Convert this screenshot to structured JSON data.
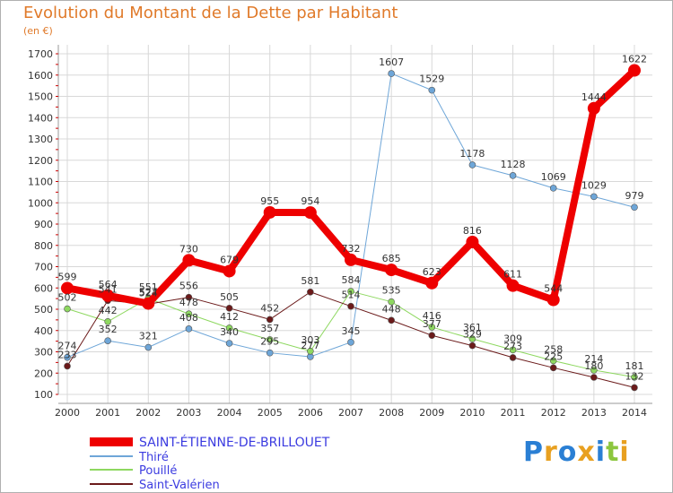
{
  "header": {
    "title": "Evolution du Montant de la Dette par Habitant",
    "subtitle": "(en €)"
  },
  "colors": {
    "text": "#e07a2a",
    "legend_text": "#3b3be0",
    "axis_text": "#333333",
    "grid": "#d8d8d8",
    "axis_ticks_red": "#cc0000"
  },
  "logo": {
    "text": "Proxiti"
  },
  "chart_data": {
    "type": "line",
    "title": "Evolution du Montant de la Dette par Habitant",
    "subtitle": "(en €)",
    "xlabel": "",
    "ylabel": "",
    "categories": [
      "2000",
      "2001",
      "2002",
      "2003",
      "2004",
      "2005",
      "2006",
      "2007",
      "2008",
      "2009",
      "2010",
      "2011",
      "2012",
      "2013",
      "2014"
    ],
    "ylim": [
      100,
      1700
    ],
    "yticks": [
      100,
      200,
      300,
      400,
      500,
      600,
      700,
      800,
      900,
      1000,
      1100,
      1200,
      1300,
      1400,
      1500,
      1600,
      1700
    ],
    "grid": true,
    "legend_position": "bottom-left",
    "series": [
      {
        "name": "SAINT-ÉTIENNE-DE-BRILLOUET",
        "color": "#ee0000",
        "width": 8,
        "values": [
          599,
          564,
          527,
          730,
          679,
          955,
          954,
          732,
          685,
          623,
          816,
          611,
          544,
          1444,
          1622
        ],
        "labels": [
          "599",
          "564",
          "527",
          "730",
          "679",
          "955",
          "954",
          "732",
          "685",
          "623",
          "816",
          "611",
          "544",
          "1444",
          "1622"
        ]
      },
      {
        "name": "Thiré",
        "color": "#6ea6d8",
        "width": 1,
        "values": [
          274,
          352,
          321,
          408,
          340,
          295,
          277,
          345,
          1607,
          1529,
          1178,
          1128,
          1069,
          1029,
          979
        ],
        "labels": [
          "274",
          "352",
          "321",
          "408",
          "340",
          "295",
          "277",
          "345",
          "1607",
          "1529",
          "1178",
          "1128",
          "1069",
          "1029",
          "979"
        ]
      },
      {
        "name": "Pouillé",
        "color": "#8ed860",
        "width": 1,
        "values": [
          502,
          442,
          551,
          478,
          412,
          357,
          303,
          584,
          535,
          416,
          361,
          309,
          258,
          214,
          181
        ],
        "labels": [
          "502",
          "442",
          "551",
          "478",
          "412",
          "357",
          "303",
          "584",
          "535",
          "416",
          "361",
          "309",
          "258",
          "214",
          "181"
        ]
      },
      {
        "name": "Saint-Valérien",
        "color": "#6b1a1a",
        "width": 1,
        "values": [
          233,
          541,
          524,
          556,
          505,
          452,
          581,
          514,
          448,
          377,
          329,
          273,
          225,
          180,
          132
        ],
        "labels": [
          "233",
          "541",
          "524",
          "556",
          "505",
          "452",
          "581",
          "514",
          "448",
          "377",
          "329",
          "273",
          "225",
          "180",
          "132"
        ]
      }
    ]
  }
}
